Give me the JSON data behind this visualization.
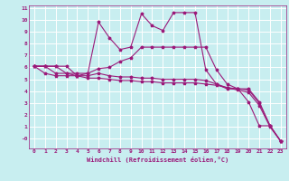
{
  "xlabel": "Windchill (Refroidissement éolien,°C)",
  "background_color": "#c8eef0",
  "grid_color": "#ffffff",
  "line_color": "#9b1a7a",
  "xlim": [
    -0.5,
    23.5
  ],
  "ylim": [
    -0.8,
    11.2
  ],
  "xticks": [
    0,
    1,
    2,
    3,
    4,
    5,
    6,
    7,
    8,
    9,
    10,
    11,
    12,
    13,
    14,
    15,
    16,
    17,
    18,
    19,
    20,
    21,
    22,
    23
  ],
  "yticks": [
    0,
    1,
    2,
    3,
    4,
    5,
    6,
    7,
    8,
    9,
    10,
    11
  ],
  "ytick_labels": [
    "-0",
    "1",
    "2",
    "3",
    "4",
    "5",
    "6",
    "7",
    "8",
    "9",
    "10",
    "11"
  ],
  "series": [
    [
      6.1,
      6.1,
      6.1,
      6.1,
      5.3,
      5.5,
      9.8,
      8.5,
      7.5,
      7.7,
      10.5,
      9.5,
      9.1,
      10.6,
      10.6,
      10.6,
      5.8,
      4.6,
      4.2,
      4.2,
      3.1,
      1.1,
      1.1,
      -0.2
    ],
    [
      6.1,
      6.1,
      6.1,
      5.5,
      5.5,
      5.5,
      5.9,
      6.0,
      6.5,
      6.8,
      7.7,
      7.7,
      7.7,
      7.7,
      7.7,
      7.7,
      7.7,
      5.8,
      4.6,
      4.2,
      4.2,
      3.1,
      1.1,
      -0.2
    ],
    [
      6.1,
      6.1,
      5.5,
      5.5,
      5.3,
      5.3,
      5.5,
      5.3,
      5.2,
      5.2,
      5.1,
      5.1,
      5.0,
      5.0,
      5.0,
      5.0,
      4.9,
      4.6,
      4.3,
      4.2,
      4.1,
      3.0,
      1.1,
      -0.2
    ],
    [
      6.1,
      5.5,
      5.3,
      5.3,
      5.3,
      5.1,
      5.1,
      5.0,
      4.9,
      4.9,
      4.8,
      4.8,
      4.7,
      4.7,
      4.7,
      4.7,
      4.6,
      4.5,
      4.3,
      4.1,
      3.9,
      2.8,
      1.0,
      -0.2
    ]
  ],
  "tick_fontsize": 4.5,
  "xlabel_fontsize": 5.0,
  "marker_size": 2.5,
  "linewidth": 0.8
}
